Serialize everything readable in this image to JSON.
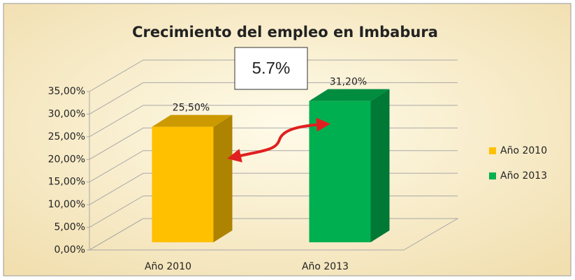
{
  "chart_data": {
    "type": "bar3d",
    "title": "Crecimiento del empleo en Imbabura",
    "annotation": "5.7%",
    "categories": [
      "Año 2010",
      "Año 2013"
    ],
    "series": [
      {
        "name": "Año 2010",
        "color": "#ffc000",
        "values": [
          25.5,
          null
        ],
        "value_labels": [
          "25,50%",
          null
        ]
      },
      {
        "name": "Año 2013",
        "color": "#00b050",
        "values": [
          null,
          31.2
        ],
        "value_labels": [
          null,
          "31,20%"
        ]
      }
    ],
    "ylim": [
      0,
      35
    ],
    "yticks": [
      {
        "value": 0,
        "label": "0,00%"
      },
      {
        "value": 5,
        "label": "5,00%"
      },
      {
        "value": 10,
        "label": "10,00%"
      },
      {
        "value": 15,
        "label": "15,00%"
      },
      {
        "value": 20,
        "label": "20,00%"
      },
      {
        "value": 25,
        "label": "25,00%"
      },
      {
        "value": 30,
        "label": "30,00%"
      },
      {
        "value": 35,
        "label": "35,00%"
      }
    ],
    "grid": true,
    "legend": "right"
  }
}
